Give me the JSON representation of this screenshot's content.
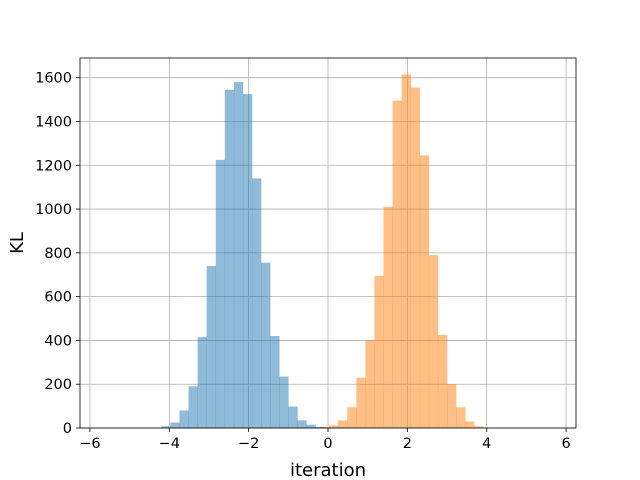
{
  "chart_data": {
    "type": "bar",
    "xlabel": "iteration",
    "ylabel": "KL",
    "xlim": [
      -6.25,
      6.25
    ],
    "ylim": [
      0,
      1690
    ],
    "x_ticks": [
      -6,
      -4,
      -2,
      0,
      2,
      4,
      6
    ],
    "y_ticks": [
      0,
      200,
      400,
      600,
      800,
      1000,
      1200,
      1400,
      1600
    ],
    "grid": true,
    "series": [
      {
        "color": "#1f77b4",
        "opacity": 0.5,
        "bin_edges": [
          -4.2,
          -3.972,
          -3.743,
          -3.515,
          -3.286,
          -3.058,
          -2.829,
          -2.601,
          -2.372,
          -2.144,
          -1.915,
          -1.687,
          -1.458,
          -1.23,
          -1.001,
          -0.773,
          -0.544,
          -0.316,
          -0.088
        ],
        "counts": [
          8,
          25,
          80,
          190,
          415,
          740,
          1225,
          1545,
          1580,
          1525,
          1140,
          755,
          420,
          235,
          98,
          35,
          15,
          5
        ]
      },
      {
        "color": "#ff7f0e",
        "opacity": 0.5,
        "bin_edges": [
          -0.2,
          0.028,
          0.257,
          0.485,
          0.714,
          0.942,
          1.171,
          1.399,
          1.628,
          1.856,
          2.085,
          2.313,
          2.542,
          2.77,
          2.999,
          3.227,
          3.456,
          3.684,
          3.912
        ],
        "counts": [
          5,
          12,
          35,
          95,
          230,
          400,
          695,
          1010,
          1495,
          1615,
          1555,
          1245,
          790,
          425,
          200,
          95,
          30,
          8
        ]
      }
    ]
  }
}
